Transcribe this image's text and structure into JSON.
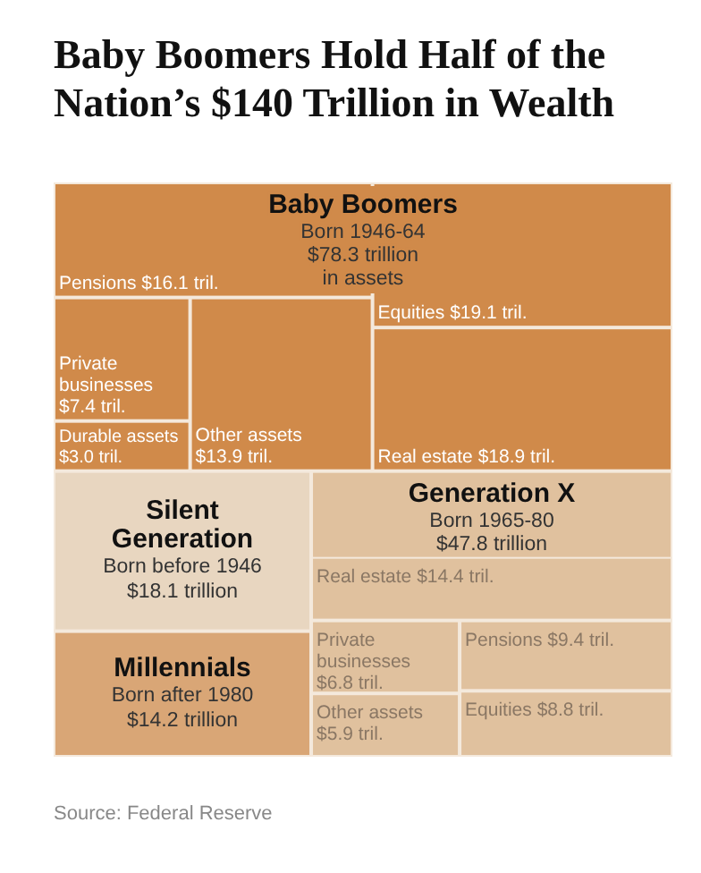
{
  "chart_data": {
    "type": "other",
    "title": "Baby Boomers Hold Half of the Nation’s $140 Trillion in Wealth",
    "categories": [
      "Pensions",
      "Private businesses",
      "Durable assets",
      "Other assets",
      "Equities",
      "Real estate",
      "Silent Generation",
      "Millennials",
      "Real estate",
      "Private businesses",
      "Other assets",
      "Pensions",
      "Equities"
    ],
    "values": [
      16.1,
      7.4,
      3.0,
      13.9,
      19.1,
      18.9,
      18.1,
      14.2,
      14.4,
      6.8,
      5.9,
      9.4,
      8.8
    ],
    "value_labels": [
      "$16.1 tril.",
      "$7.4 tril.",
      "$3.0 tril.",
      "$13.9 tril.",
      "$19.1 tril.",
      "$18.9 tril.",
      "$18.1 trillion",
      "$14.2 trillion",
      "$14.4 tril.",
      "$6.8 tril.",
      "$5.9 tril.",
      "$9.4 tril.",
      "$8.8 tril."
    ],
    "colors": [
      "#d08a4a",
      "#d08a4a",
      "#d08a4a",
      "#d08a4a",
      "#d08a4a",
      "#d08a4a",
      "#e8d6c0",
      "#d9a676",
      "#e0c19e",
      "#e0c19e",
      "#e0c19e",
      "#e0c19e",
      "#e0c19e"
    ],
    "annotations": [
      "Baby Boomers",
      "Born 1946-64",
      "$78.3 trillion\nin assets",
      "Born before 1946",
      "Born after 1980",
      "Generation X",
      "Born 1965-80",
      "$47.8 trillion",
      "Source: Federal Reserve"
    ]
  }
}
